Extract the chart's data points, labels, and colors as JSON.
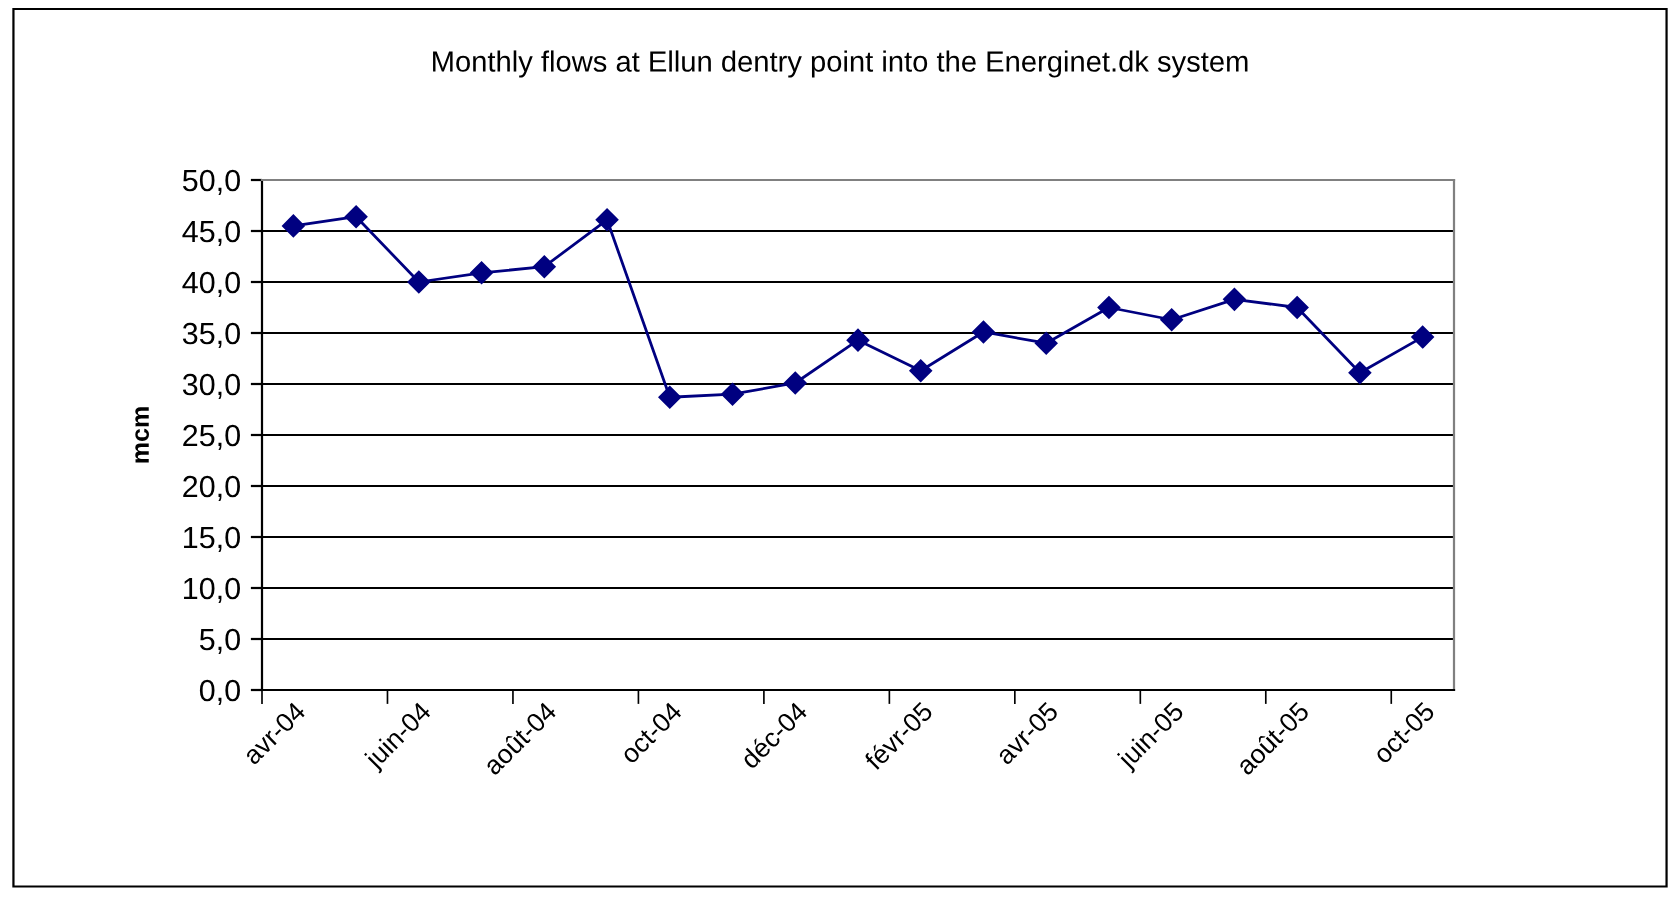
{
  "chart_data": {
    "type": "line",
    "title": "Monthly flows at Ellun dentry point into the Energinet.dk system",
    "ylabel": "mcm",
    "categories": [
      "avr-04",
      null,
      "juin-04",
      null,
      "août-04",
      null,
      "oct-04",
      null,
      "déc-04",
      null,
      "févr-05",
      null,
      "avr-05",
      null,
      "juin-05",
      null,
      "août-05",
      null,
      "oct-05"
    ],
    "series": [
      {
        "color": "#000080",
        "values": [
          45.5,
          46.4,
          40.0,
          40.9,
          41.5,
          46.1,
          28.7,
          29.0,
          30.1,
          34.3,
          31.3,
          35.1,
          34.0,
          37.5,
          36.3,
          38.3,
          37.5,
          31.1,
          34.6
        ]
      }
    ],
    "ylim": [
      0,
      50
    ],
    "yticks": [
      {
        "value": 0,
        "label": "0,0"
      },
      {
        "value": 5,
        "label": "5,0"
      },
      {
        "value": 10,
        "label": "10,0"
      },
      {
        "value": 15,
        "label": "15,0"
      },
      {
        "value": 20,
        "label": "20,0"
      },
      {
        "value": 25,
        "label": "25,0"
      },
      {
        "value": 30,
        "label": "30,0"
      },
      {
        "value": 35,
        "label": "35,0"
      },
      {
        "value": 40,
        "label": "40,0"
      },
      {
        "value": 45,
        "label": "45,0"
      },
      {
        "value": 50,
        "label": "50,0"
      }
    ],
    "grid": "y",
    "marker": "diamond",
    "line_style": "solid"
  }
}
